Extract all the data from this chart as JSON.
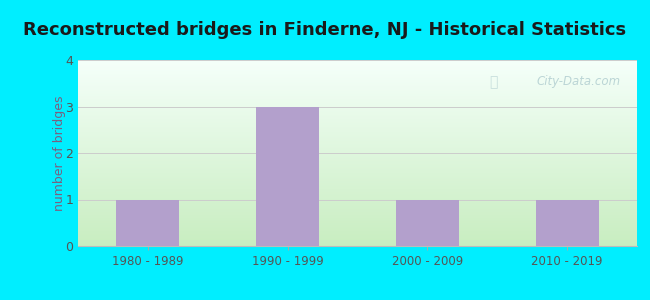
{
  "title": "Reconstructed bridges in Finderne, NJ - Historical Statistics",
  "categories": [
    "1980 - 1989",
    "1990 - 1999",
    "2000 - 2009",
    "2010 - 2019"
  ],
  "values": [
    1,
    3,
    1,
    1
  ],
  "bar_color": "#b3a0cc",
  "ylabel": "number of bridges",
  "ylim": [
    0,
    4
  ],
  "yticks": [
    0,
    1,
    2,
    3,
    4
  ],
  "background_outer": "#00eeff",
  "background_inner_top": "#f5fffa",
  "background_inner_bottom": "#c8edc0",
  "grid_color": "#cccccc",
  "title_color": "#1a1a1a",
  "axis_label_color": "#7a6080",
  "tick_color": "#555555",
  "watermark": "City-Data.com",
  "title_fontsize": 13,
  "ylabel_fontsize": 9
}
